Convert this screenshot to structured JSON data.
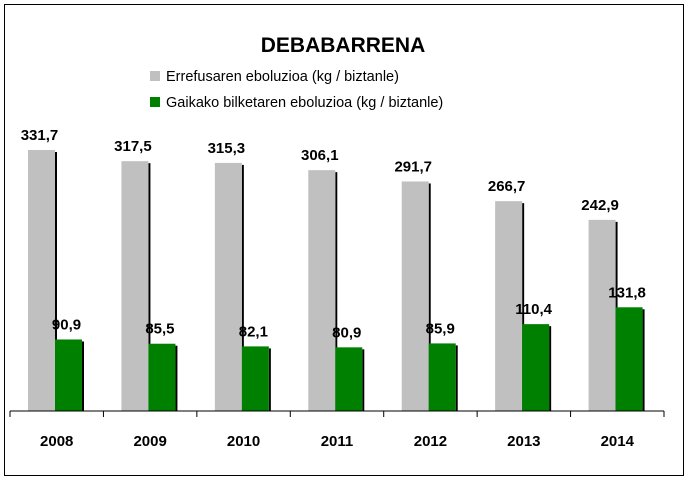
{
  "chart_data": {
    "type": "bar",
    "title": "DEBABARRENA",
    "categories": [
      "2008",
      "2009",
      "2010",
      "2011",
      "2012",
      "2013",
      "2014"
    ],
    "series": [
      {
        "name": "Errefusaren eboluzioa (kg / biztanle)",
        "color": "#c0c0c0",
        "values": [
          331.7,
          317.5,
          315.3,
          306.1,
          291.7,
          266.7,
          242.9
        ],
        "labels": [
          "331,7",
          "317,5",
          "315,3",
          "306,1",
          "291,7",
          "266,7",
          "242,9"
        ]
      },
      {
        "name": "Gaikako bilketaren eboluzioa (kg / biztanle)",
        "color": "#008000",
        "values": [
          90.9,
          85.5,
          82.1,
          80.9,
          85.9,
          110.4,
          131.8
        ],
        "labels": [
          "90,9",
          "85,5",
          "82,1",
          "80,9",
          "85,9",
          "110,4",
          "131,8"
        ]
      }
    ],
    "xlabel": "",
    "ylabel": "",
    "ylim": [
      0,
      331.7
    ],
    "grid": false,
    "legend_position": "top-center"
  }
}
